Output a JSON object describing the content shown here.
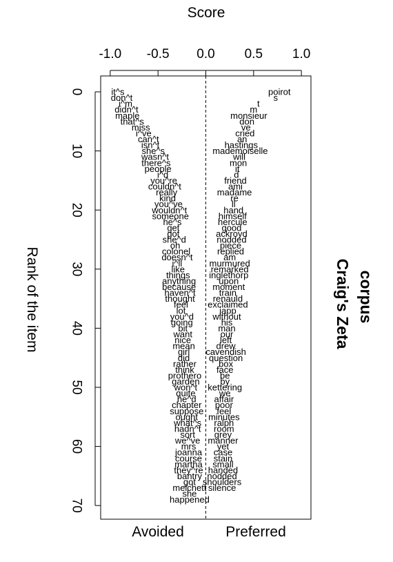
{
  "chart_data": {
    "type": "scatter",
    "title": "",
    "side_labels": [
      "corpus",
      "Craig's Zeta"
    ],
    "xlabel": "Score",
    "ylabel": "Rank of the item",
    "bottom_labels": {
      "left": "Avoided",
      "right": "Preferred"
    },
    "xlim": [
      -1.1,
      1.1
    ],
    "ylim": [
      0,
      72
    ],
    "x_ticks": [
      "-1.0",
      "-0.5",
      "0.0",
      "0.5",
      "1.0"
    ],
    "x_tick_values": [
      -1.0,
      -0.5,
      0.0,
      0.5,
      1.0
    ],
    "y_ticks": [
      "0",
      "10",
      "20",
      "30",
      "40",
      "50",
      "60",
      "70"
    ],
    "y_tick_values": [
      0,
      10,
      20,
      30,
      40,
      50,
      60,
      70
    ],
    "reference_line_x": 0,
    "grid": false,
    "avoided": {
      "words": [
        "it^s",
        "don^t",
        "i^m",
        "didn^t",
        "maple",
        "that^s",
        "miss",
        "i^ve",
        "can^t",
        "isn^t",
        "she^s",
        "wasn^t",
        "there^s",
        "people",
        "i^d",
        "you^re",
        "couldn^t",
        "really",
        "kind",
        "you^ve",
        "wouldn^t",
        "someone",
        "he^s",
        "get",
        "got",
        "she^d",
        "oh",
        "colonel",
        "doesn^t",
        "i^ll",
        "like",
        "things",
        "anything",
        "because",
        "haven^t",
        "thought",
        "feel",
        "lot",
        "you^d",
        "going",
        "bit",
        "want",
        "nice",
        "mean",
        "girl",
        "did",
        "rather",
        "think",
        "prothero",
        "garden",
        "won^t",
        "quite",
        "he^d",
        "chapter",
        "suppose",
        "ought",
        "what^s",
        "hadn^t",
        "sort",
        "we^ve",
        "mrs",
        "joanna",
        "course",
        "martha",
        "they^re",
        "bantry",
        "got",
        "melchett",
        "she",
        "happened"
      ],
      "scores": [
        -0.92,
        -0.88,
        -0.84,
        -0.83,
        -0.82,
        -0.77,
        -0.68,
        -0.65,
        -0.6,
        -0.58,
        -0.55,
        -0.53,
        -0.52,
        -0.5,
        -0.45,
        -0.44,
        -0.43,
        -0.41,
        -0.4,
        -0.39,
        -0.38,
        -0.37,
        -0.35,
        -0.34,
        -0.34,
        -0.33,
        -0.32,
        -0.31,
        -0.3,
        -0.3,
        -0.29,
        -0.29,
        -0.28,
        -0.28,
        -0.27,
        -0.27,
        -0.26,
        -0.26,
        -0.25,
        -0.25,
        -0.24,
        -0.24,
        -0.24,
        -0.23,
        -0.23,
        -0.23,
        -0.22,
        -0.22,
        -0.22,
        -0.21,
        -0.21,
        -0.21,
        -0.2,
        -0.2,
        -0.2,
        -0.2,
        -0.19,
        -0.19,
        -0.19,
        -0.19,
        -0.18,
        -0.18,
        -0.18,
        -0.18,
        -0.18,
        -0.17,
        -0.17,
        -0.17,
        -0.17,
        -0.17
      ]
    },
    "preferred": {
      "words": [
        "poirot",
        "s",
        "t",
        "m",
        "monsieur",
        "don",
        "ve",
        "cried",
        "an",
        "hastings",
        "mademoiselle",
        "will",
        "mon",
        "it",
        "d",
        "friend",
        "ami",
        "madame",
        "re",
        "ll",
        "hand",
        "himself",
        "hercule",
        "good",
        "ackroyd",
        "nodded",
        "piece",
        "replied",
        "am",
        "murmured",
        "remarked",
        "inglethorp",
        "upon",
        "moment",
        "train",
        "renauld",
        "exclaimed",
        "japp",
        "without",
        "his",
        "man",
        "our",
        "left",
        "drew",
        "cavendish",
        "question",
        "box",
        "face",
        "be",
        "by",
        "kettering",
        "we",
        "affair",
        "poor",
        "feel",
        "minutes",
        "ralph",
        "room",
        "grey",
        "manner",
        "yet",
        "case",
        "stain",
        "small",
        "handed",
        "nodded",
        "shoulders",
        "silence"
      ],
      "scores": [
        0.77,
        0.73,
        0.55,
        0.5,
        0.45,
        0.43,
        0.42,
        0.41,
        0.38,
        0.37,
        0.36,
        0.35,
        0.34,
        0.33,
        0.32,
        0.31,
        0.31,
        0.3,
        0.3,
        0.29,
        0.29,
        0.28,
        0.28,
        0.27,
        0.27,
        0.27,
        0.26,
        0.26,
        0.25,
        0.25,
        0.25,
        0.24,
        0.24,
        0.24,
        0.23,
        0.23,
        0.23,
        0.23,
        0.22,
        0.22,
        0.22,
        0.22,
        0.21,
        0.21,
        0.21,
        0.21,
        0.21,
        0.2,
        0.2,
        0.2,
        0.2,
        0.2,
        0.19,
        0.19,
        0.19,
        0.19,
        0.19,
        0.19,
        0.18,
        0.18,
        0.18,
        0.18,
        0.18,
        0.18,
        0.18,
        0.17,
        0.17,
        0.17
      ]
    }
  }
}
